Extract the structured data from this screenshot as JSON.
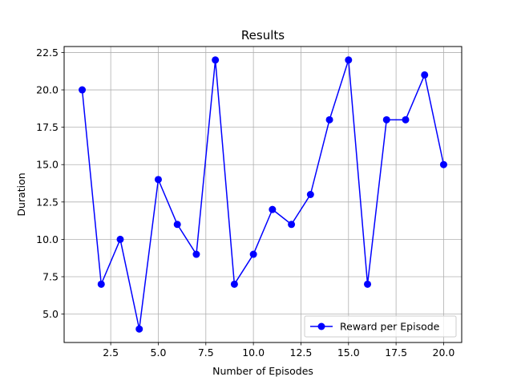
{
  "chart_data": {
    "type": "line",
    "title": "Results",
    "xlabel": "Number of Episodes",
    "ylabel": "Duration",
    "xlim": [
      0.05,
      20.95
    ],
    "ylim": [
      3.1,
      22.9
    ],
    "x_ticks": [
      2.5,
      5.0,
      7.5,
      10.0,
      12.5,
      15.0,
      17.5,
      20.0
    ],
    "x_tick_labels": [
      "2.5",
      "5.0",
      "7.5",
      "10.0",
      "12.5",
      "15.0",
      "17.5",
      "20.0"
    ],
    "y_ticks": [
      5.0,
      7.5,
      10.0,
      12.5,
      15.0,
      17.5,
      20.0,
      22.5
    ],
    "y_tick_labels": [
      "5.0",
      "7.5",
      "10.0",
      "12.5",
      "15.0",
      "17.5",
      "20.0",
      "22.5"
    ],
    "grid": true,
    "legend_position": "lower-right",
    "series": [
      {
        "name": "Reward per Episode",
        "color": "#0000ff",
        "marker": "circle",
        "x": [
          1,
          2,
          3,
          4,
          5,
          6,
          7,
          8,
          9,
          10,
          11,
          12,
          13,
          14,
          15,
          16,
          17,
          18,
          19,
          20
        ],
        "values": [
          20,
          7,
          10,
          4,
          14,
          11,
          9,
          22,
          7,
          9,
          12,
          11,
          13,
          18,
          22,
          7,
          18,
          18,
          21,
          15
        ]
      }
    ]
  }
}
